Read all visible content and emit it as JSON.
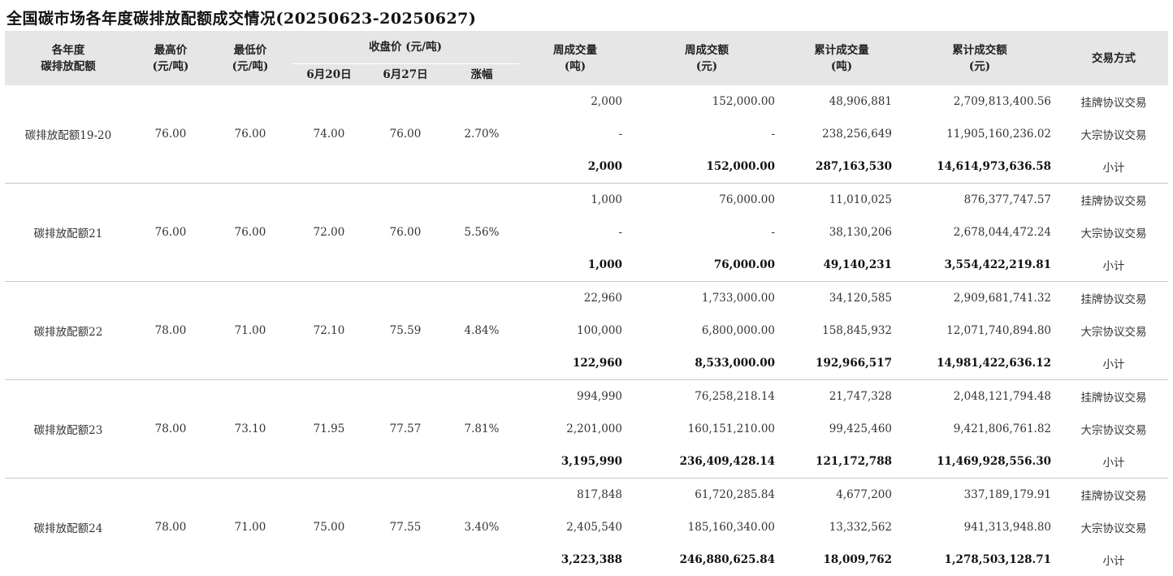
{
  "title": "全国碳市场各年度碳排放配额成交情况(20250623-20250627)",
  "headers": {
    "allowance": "各年度\n碳排放配额",
    "high": "最高价\n(元/吨)",
    "low": "最低价\n(元/吨)",
    "close_group": "收盘价 (元/吨)",
    "jun20": "6月20日",
    "jun27": "6月27日",
    "change": "涨幅",
    "week_vol": "周成交量\n(吨)",
    "week_amt": "周成交额\n(元)",
    "cum_vol": "累计成交量\n(吨)",
    "cum_amt": "累计成交额\n(元)",
    "method": "交易方式"
  },
  "groups": [
    {
      "name": "碳排放配额19-20",
      "high": "76.00",
      "low": "76.00",
      "jun20": "74.00",
      "jun27": "76.00",
      "change": "2.70%",
      "rows": [
        {
          "week_vol": "2,000",
          "week_amt": "152,000.00",
          "cum_vol": "48,906,881",
          "cum_amt": "2,709,813,400.56",
          "method": "挂牌协议交易"
        },
        {
          "week_vol": "-",
          "week_amt": "-",
          "cum_vol": "238,256,649",
          "cum_amt": "11,905,160,236.02",
          "method": "大宗协议交易"
        },
        {
          "week_vol": "2,000",
          "week_amt": "152,000.00",
          "cum_vol": "287,163,530",
          "cum_amt": "14,614,973,636.58",
          "method": "小计"
        }
      ]
    },
    {
      "name": "碳排放配额21",
      "high": "76.00",
      "low": "76.00",
      "jun20": "72.00",
      "jun27": "76.00",
      "change": "5.56%",
      "rows": [
        {
          "week_vol": "1,000",
          "week_amt": "76,000.00",
          "cum_vol": "11,010,025",
          "cum_amt": "876,377,747.57",
          "method": "挂牌协议交易"
        },
        {
          "week_vol": "-",
          "week_amt": "-",
          "cum_vol": "38,130,206",
          "cum_amt": "2,678,044,472.24",
          "method": "大宗协议交易"
        },
        {
          "week_vol": "1,000",
          "week_amt": "76,000.00",
          "cum_vol": "49,140,231",
          "cum_amt": "3,554,422,219.81",
          "method": "小计"
        }
      ]
    },
    {
      "name": "碳排放配额22",
      "high": "78.00",
      "low": "71.00",
      "jun20": "72.10",
      "jun27": "75.59",
      "change": "4.84%",
      "rows": [
        {
          "week_vol": "22,960",
          "week_amt": "1,733,000.00",
          "cum_vol": "34,120,585",
          "cum_amt": "2,909,681,741.32",
          "method": "挂牌协议交易"
        },
        {
          "week_vol": "100,000",
          "week_amt": "6,800,000.00",
          "cum_vol": "158,845,932",
          "cum_amt": "12,071,740,894.80",
          "method": "大宗协议交易"
        },
        {
          "week_vol": "122,960",
          "week_amt": "8,533,000.00",
          "cum_vol": "192,966,517",
          "cum_amt": "14,981,422,636.12",
          "method": "小计"
        }
      ]
    },
    {
      "name": "碳排放配额23",
      "high": "78.00",
      "low": "73.10",
      "jun20": "71.95",
      "jun27": "77.57",
      "change": "7.81%",
      "rows": [
        {
          "week_vol": "994,990",
          "week_amt": "76,258,218.14",
          "cum_vol": "21,747,328",
          "cum_amt": "2,048,121,794.48",
          "method": "挂牌协议交易"
        },
        {
          "week_vol": "2,201,000",
          "week_amt": "160,151,210.00",
          "cum_vol": "99,425,460",
          "cum_amt": "9,421,806,761.82",
          "method": "大宗协议交易"
        },
        {
          "week_vol": "3,195,990",
          "week_amt": "236,409,428.14",
          "cum_vol": "121,172,788",
          "cum_amt": "11,469,928,556.30",
          "method": "小计"
        }
      ]
    },
    {
      "name": "碳排放配额24",
      "high": "78.00",
      "low": "71.00",
      "jun20": "75.00",
      "jun27": "77.55",
      "change": "3.40%",
      "rows": [
        {
          "week_vol": "817,848",
          "week_amt": "61,720,285.84",
          "cum_vol": "4,677,200",
          "cum_amt": "337,189,179.91",
          "method": "挂牌协议交易"
        },
        {
          "week_vol": "2,405,540",
          "week_amt": "185,160,340.00",
          "cum_vol": "13,332,562",
          "cum_amt": "941,313,948.80",
          "method": "大宗协议交易"
        },
        {
          "week_vol": "3,223,388",
          "week_amt": "246,880,625.84",
          "cum_vol": "18,009,762",
          "cum_amt": "1,278,503,128.71",
          "method": "小计"
        }
      ]
    }
  ]
}
